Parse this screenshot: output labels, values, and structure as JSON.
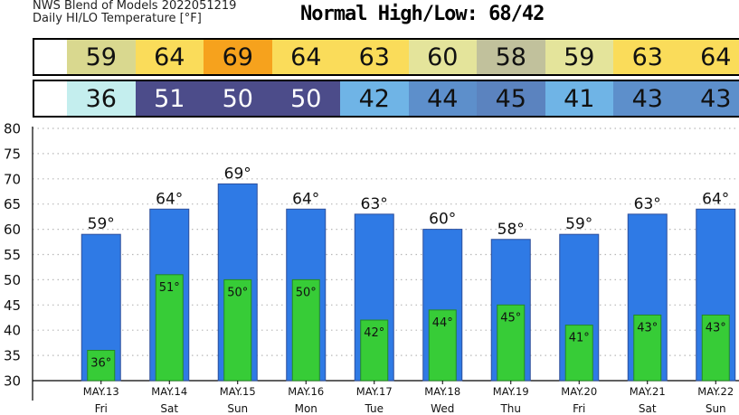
{
  "header": {
    "source": "NWS Blend of Models 2022051219",
    "units": "Daily HI/LO Temperature [°F]",
    "normal_title": "Normal High/Low:  68/42"
  },
  "strips": {
    "highs": [
      "59",
      "64",
      "69",
      "64",
      "63",
      "60",
      "58",
      "59",
      "63",
      "64"
    ],
    "lows": [
      "36",
      "51",
      "50",
      "50",
      "42",
      "44",
      "45",
      "41",
      "43",
      "43"
    ],
    "high_colors": [
      "#d9d88f",
      "#fadc5a",
      "#f6a21d",
      "#fadc5a",
      "#fadc5a",
      "#e4e49b",
      "#c1c19c",
      "#e4e49b",
      "#fadc5a",
      "#fadc5a"
    ],
    "low_colors": [
      "#c4eeee",
      "#4c4c8a",
      "#4c4c8a",
      "#4c4c8a",
      "#6fb4e6",
      "#5d8fcb",
      "#5b83bf",
      "#6fb4e6",
      "#5d8fcb",
      "#5d8fcb"
    ]
  },
  "chart_data": {
    "type": "bar",
    "categories": [
      "MAY.13",
      "MAY.14",
      "MAY.15",
      "MAY.16",
      "MAY.17",
      "MAY.18",
      "MAY.19",
      "MAY.20",
      "MAY.21",
      "MAY.22"
    ],
    "days": [
      "Fri",
      "Sat",
      "Sun",
      "Mon",
      "Tue",
      "Wed",
      "Thu",
      "Fri",
      "Sat",
      "Sun"
    ],
    "series": [
      {
        "values": [
          59,
          64,
          69,
          64,
          63,
          60,
          58,
          59,
          63,
          64
        ],
        "color": "#2f7ae5"
      },
      {
        "values": [
          36,
          51,
          50,
          50,
          42,
          44,
          45,
          41,
          43,
          43
        ],
        "color": "#37cc37"
      }
    ],
    "high_labels": [
      "59°",
      "64°",
      "69°",
      "64°",
      "63°",
      "60°",
      "58°",
      "59°",
      "63°",
      "64°"
    ],
    "low_labels": [
      "36°",
      "51°",
      "50°",
      "50°",
      "42°",
      "44°",
      "45°",
      "41°",
      "43°",
      "43°"
    ],
    "ylim": [
      30,
      80
    ],
    "yticks": [
      30,
      35,
      40,
      45,
      50,
      55,
      60,
      65,
      70,
      75,
      80
    ],
    "grid": true
  }
}
